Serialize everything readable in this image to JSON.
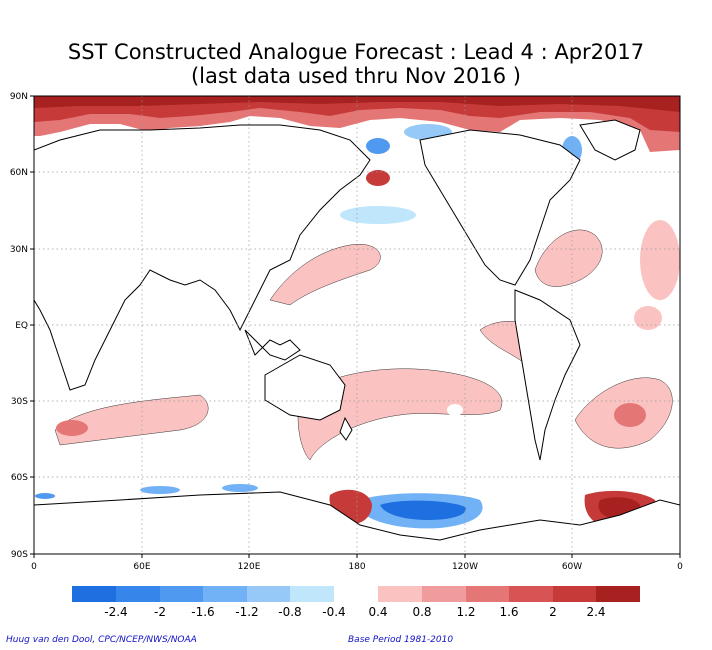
{
  "title": {
    "line1": "SST Constructed Analogue Forecast : Lead 4 : Apr2017",
    "line2": "(last data used thru Nov 2016 )"
  },
  "lat_labels": [
    "90N",
    "60N",
    "30N",
    "EQ",
    "30S",
    "60S",
    "90S"
  ],
  "lon_labels": [
    "0",
    "60E",
    "120E",
    "180",
    "120W",
    "60W",
    "0"
  ],
  "colorbar": {
    "neg_colors": [
      "#1e6fe0",
      "#3585ea",
      "#4f9af0",
      "#71b1f5",
      "#97c9f8",
      "#bfe6fb"
    ],
    "pos_colors": [
      "#fbc2c2",
      "#f19c9c",
      "#e47676",
      "#d85454",
      "#c63a3a",
      "#a72121"
    ],
    "neg_labels": [
      "-2.4",
      "-2",
      "-1.6",
      "-1.2",
      "-0.8",
      "-0.4"
    ],
    "pos_labels": [
      "0.4",
      "0.8",
      "1.2",
      "1.6",
      "2",
      "2.4"
    ]
  },
  "footer": {
    "left": "Huug van den Dool, CPC/NCEP/NWS/NOAA",
    "right": "Base Period 1981-2010"
  },
  "map_data": {
    "projection": "equirectangular",
    "lon_range": [
      0,
      360
    ],
    "lat_range": [
      -90,
      90
    ],
    "gridlines": "dotted"
  }
}
